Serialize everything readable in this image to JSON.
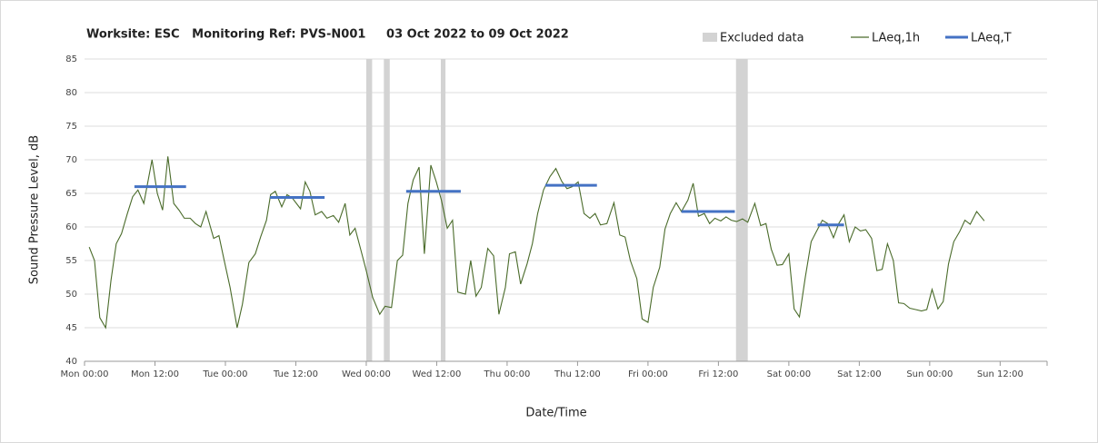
{
  "chart_data": {
    "type": "line",
    "title": "Worksite: ESC   Monitoring Ref: PVS-N001     03 Oct 2022 to 09 Oct 2022",
    "xlabel": "Date/Time",
    "ylabel": "Sound Pressure Level, dB",
    "xlim": [
      0,
      164
    ],
    "ylim": [
      40,
      85
    ],
    "xticks": [
      {
        "value": 0,
        "label": "Mon 00:00"
      },
      {
        "value": 12,
        "label": "Mon 12:00"
      },
      {
        "value": 24,
        "label": "Tue 00:00"
      },
      {
        "value": 36,
        "label": "Tue 12:00"
      },
      {
        "value": 48,
        "label": "Wed 00:00"
      },
      {
        "value": 60,
        "label": "Wed 12:00"
      },
      {
        "value": 72,
        "label": "Thu 00:00"
      },
      {
        "value": 84,
        "label": "Thu 12:00"
      },
      {
        "value": 96,
        "label": "Fri 00:00"
      },
      {
        "value": 108,
        "label": "Fri 12:00"
      },
      {
        "value": 120,
        "label": "Sat 00:00"
      },
      {
        "value": 132,
        "label": "Sat 12:00"
      },
      {
        "value": 144,
        "label": "Sun 00:00"
      },
      {
        "value": 156,
        "label": "Sun 12:00"
      }
    ],
    "yticks": [
      40,
      45,
      50,
      55,
      60,
      65,
      70,
      75,
      80,
      85
    ],
    "grid": true,
    "excluded": {
      "name": "Excluded data",
      "color": "#d3d3d3",
      "ranges": [
        [
          48,
          49
        ],
        [
          51,
          52
        ],
        [
          60.7,
          61.5
        ],
        [
          111,
          113
        ]
      ]
    },
    "series": [
      {
        "name": "LAeq,1h",
        "color": "#4a6b2a",
        "x": [
          0.8,
          1.7,
          2.6,
          3.6,
          4.5,
          5.4,
          6.3,
          7.3,
          8.2,
          9.1,
          10.1,
          11.5,
          12.4,
          13.3,
          14.2,
          15.2,
          16.1,
          17.0,
          18.0,
          18.9,
          19.8,
          20.7,
          22.0,
          22.9,
          23.8,
          24.8,
          26.0,
          26.9,
          28.0,
          29.1,
          30.0,
          31.0,
          31.7,
          32.5,
          33.6,
          34.5,
          35.4,
          36.8,
          37.6,
          38.4,
          39.3,
          40.4,
          41.3,
          42.4,
          43.3,
          44.4,
          45.2,
          46.1,
          47.1,
          48.0,
          49.1,
          50.3,
          51.2,
          52.3,
          53.3,
          54.2,
          55.1,
          56.0,
          57.0,
          57.9,
          59.0,
          59.9,
          60.8,
          61.8,
          62.7,
          63.6,
          64.9,
          65.8,
          66.7,
          67.6,
          68.7,
          69.7,
          70.6,
          71.7,
          72.4,
          73.4,
          74.3,
          75.4,
          76.3,
          77.2,
          78.2,
          79.3,
          80.3,
          81.3,
          82.2,
          83.1,
          84.1,
          85.1,
          86.1,
          87.0,
          87.9,
          89.0,
          90.2,
          91.2,
          92.1,
          93.0,
          94.1,
          95.0,
          96.0,
          96.9,
          98.0,
          98.9,
          99.8,
          100.8,
          101.7,
          102.8,
          103.7,
          104.6,
          105.6,
          106.5,
          107.4,
          108.4,
          109.3,
          110.2,
          111.1,
          112.1,
          113.0,
          114.2,
          115.2,
          116.1,
          117.0,
          118.0,
          118.9,
          120.0,
          120.9,
          121.8,
          122.8,
          123.8,
          124.8,
          125.7,
          126.6,
          127.6,
          128.5,
          129.4,
          130.3,
          131.3,
          132.2,
          133.1,
          134.1,
          135.0,
          135.9,
          136.8,
          137.8,
          138.7,
          139.6,
          140.6,
          141.6,
          142.6,
          143.5,
          144.4,
          145.4,
          146.3,
          147.2,
          148.1,
          149.1,
          150.0,
          150.9,
          152.0,
          153.3
        ],
        "values": [
          57,
          55,
          46.5,
          45,
          52,
          57.5,
          59,
          62,
          64.5,
          65.5,
          63.5,
          70,
          65,
          62.5,
          70.5,
          63.5,
          62.5,
          61.3,
          61.3,
          60.5,
          60,
          62.3,
          58.3,
          58.7,
          55,
          51,
          45,
          48.5,
          54.7,
          56,
          58.5,
          61,
          64.8,
          65.3,
          63,
          64.8,
          64.3,
          62.7,
          66.7,
          65.3,
          61.8,
          62.3,
          61.3,
          61.7,
          60.7,
          63.5,
          58.8,
          59.8,
          56.5,
          53.5,
          49.5,
          47,
          48.2,
          48,
          55,
          55.8,
          63.5,
          67,
          68.9,
          56,
          69.2,
          66.8,
          64,
          59.8,
          61,
          50.3,
          50,
          55,
          49.7,
          51,
          56.8,
          55.7,
          47,
          51,
          56,
          56.3,
          51.5,
          54.5,
          57.5,
          62,
          65.5,
          67.5,
          68.7,
          66.8,
          65.7,
          66,
          66.7,
          62,
          61.3,
          62,
          60.3,
          60.5,
          63.6,
          58.8,
          58.5,
          55,
          52.3,
          46.3,
          45.8,
          51,
          54,
          59.7,
          62,
          63.6,
          62.3,
          64,
          66.5,
          61.6,
          62,
          60.5,
          61.3,
          60.9,
          61.5,
          61,
          60.8,
          61.2,
          60.7,
          63.5,
          60.2,
          60.5,
          56.7,
          54.3,
          54.4,
          56,
          47.8,
          46.6,
          52.5,
          57.8,
          59.5,
          61,
          60.5,
          58.4,
          60.5,
          61.8,
          57.8,
          60,
          59.4,
          59.6,
          58.3,
          53.5,
          53.7,
          57.5,
          55,
          48.7,
          48.6,
          47.9,
          47.7,
          47.5,
          47.7,
          50.7,
          47.8,
          48.9,
          54.5,
          57.8,
          59.3,
          61,
          60.4,
          62.3,
          60.9
        ]
      },
      {
        "name": "LAeq,T",
        "color": "#4472c4",
        "segments": [
          {
            "x": [
              8.5,
              17.3
            ],
            "value": 66
          },
          {
            "x": [
              31.6,
              40.9
            ],
            "value": 64.4
          },
          {
            "x": [
              54.8,
              64.1
            ],
            "value": 65.3
          },
          {
            "x": [
              78.5,
              87.3
            ],
            "value": 66.2
          },
          {
            "x": [
              101.7,
              110.8
            ],
            "value": 62.3
          },
          {
            "x": [
              124.9,
              129.4
            ],
            "value": 60.3
          }
        ]
      }
    ]
  }
}
